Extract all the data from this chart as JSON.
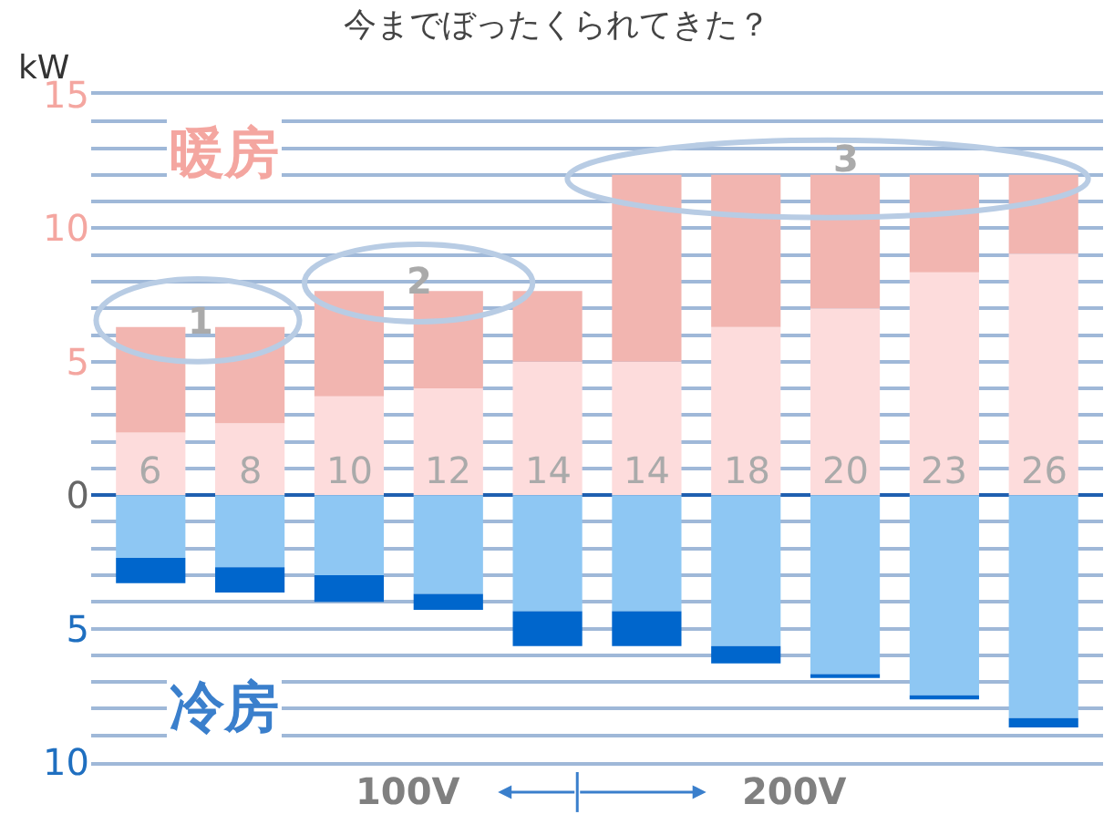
{
  "chart_data": {
    "type": "bar",
    "stacked": true,
    "title": "今までぼったくられてきた？",
    "ylabel": "kW",
    "categories": [
      "6",
      "8",
      "10",
      "12",
      "14",
      "14",
      "18",
      "20",
      "23",
      "26"
    ],
    "series": [
      {
        "color": "#fddcdc",
        "values": [
          2.35,
          2.7,
          3.7,
          4.0,
          5.0,
          5.0,
          6.3,
          7.0,
          8.35,
          9.05
        ]
      },
      {
        "color": "#f2b5b0",
        "values": [
          3.95,
          3.6,
          3.95,
          3.65,
          2.65,
          7.0,
          5.7,
          5.0,
          3.65,
          2.95
        ]
      },
      {
        "color": "#8ec7f3",
        "values": [
          -2.35,
          -2.7,
          -3.0,
          -3.7,
          -4.35,
          -4.35,
          -5.65,
          -6.7,
          -7.5,
          -8.35
        ]
      },
      {
        "color": "#0066cc",
        "values": [
          -0.95,
          -0.95,
          -1.0,
          -0.6,
          -1.3,
          -1.3,
          -0.65,
          -0.15,
          -0.15,
          -0.35
        ]
      }
    ],
    "ylim": [
      -10,
      15
    ],
    "yticks": [
      {
        "value": -10,
        "label": "10"
      },
      {
        "value": -9,
        "label": null
      },
      {
        "value": -8,
        "label": null
      },
      {
        "value": -7,
        "label": null
      },
      {
        "value": -6,
        "label": null
      },
      {
        "value": -5,
        "label": "5"
      },
      {
        "value": -4,
        "label": null
      },
      {
        "value": -3,
        "label": null
      },
      {
        "value": -2,
        "label": null
      },
      {
        "value": -1,
        "label": null
      },
      0,
      {
        "value": 1,
        "label": null
      },
      {
        "value": 2,
        "label": null
      },
      {
        "value": 3,
        "label": null
      },
      {
        "value": 4,
        "label": null
      },
      5,
      {
        "value": 6,
        "label": null
      },
      {
        "value": 7,
        "label": null
      },
      {
        "value": 8,
        "label": null
      },
      {
        "value": 9,
        "label": null
      },
      10,
      {
        "value": 11,
        "label": null
      },
      {
        "value": 12,
        "label": null
      },
      {
        "value": 13,
        "label": null
      },
      {
        "value": 14,
        "label": null
      },
      15
    ],
    "grid": "y",
    "annotations": [
      "暖房",
      "冷房",
      "1",
      "2",
      "3",
      "100V",
      "200V"
    ]
  }
}
